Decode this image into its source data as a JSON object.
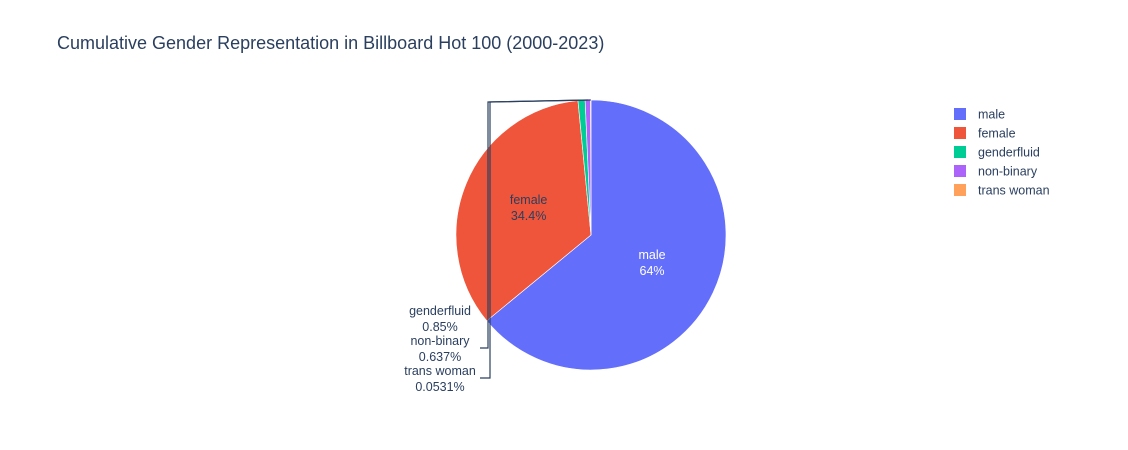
{
  "chart_data": {
    "type": "pie",
    "title": "Cumulative Gender Representation in Billboard Hot 100 (2000-2023)",
    "slices": [
      {
        "name": "male",
        "value": 64.0,
        "label_value": "64%",
        "color": "#636efa",
        "label_color": "#ffffff"
      },
      {
        "name": "female",
        "value": 34.4,
        "label_value": "34.4%",
        "color": "#ef553b",
        "label_color": "#2a3f5f"
      },
      {
        "name": "genderfluid",
        "value": 0.85,
        "label_value": "0.85%",
        "color": "#00cc96",
        "label_color": "#2a3f5f"
      },
      {
        "name": "non-binary",
        "value": 0.637,
        "label_value": "0.637%",
        "color": "#ab63fa",
        "label_color": "#2a3f5f"
      },
      {
        "name": "trans woman",
        "value": 0.0531,
        "label_value": "0.0531%",
        "color": "#ffa15a",
        "label_color": "#2a3f5f"
      }
    ],
    "legend_position": "top-right",
    "direction": "clockwise",
    "start": "top"
  }
}
